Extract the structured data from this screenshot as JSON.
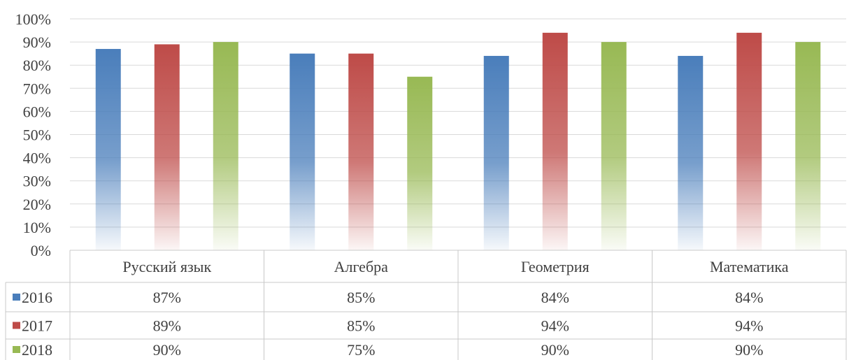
{
  "chart_data": {
    "type": "bar",
    "categories": [
      "Русский язык",
      "Алгебра",
      "Геометрия",
      "Математика"
    ],
    "series": [
      {
        "name": "2016",
        "values": [
          87,
          85,
          84,
          84
        ],
        "color": "#4a7ebb"
      },
      {
        "name": "2017",
        "values": [
          89,
          85,
          94,
          94
        ],
        "color": "#be4b48"
      },
      {
        "name": "2018",
        "values": [
          90,
          75,
          90,
          90
        ],
        "color": "#98b954"
      }
    ],
    "y_ticks": [
      "0%",
      "10%",
      "20%",
      "30%",
      "40%",
      "50%",
      "60%",
      "70%",
      "80%",
      "90%",
      "100%"
    ],
    "ylim": [
      0,
      100
    ],
    "data_table": [
      [
        "87%",
        "85%",
        "84%",
        "84%"
      ],
      [
        "89%",
        "85%",
        "94%",
        "94%"
      ],
      [
        "90%",
        "75%",
        "90%",
        "90%"
      ]
    ],
    "grid": true,
    "legend": "data-table"
  }
}
